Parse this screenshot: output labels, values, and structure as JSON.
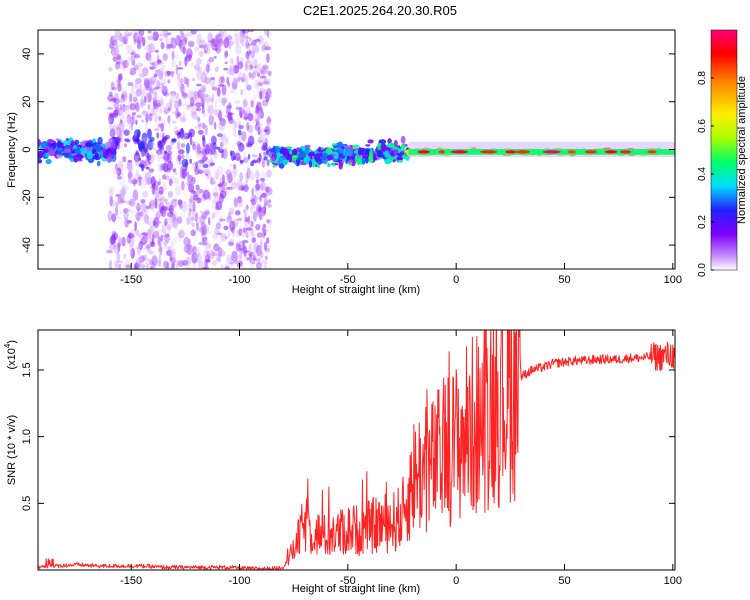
{
  "title": "C2E1.2025.264.20.30.R05",
  "chart_data": [
    {
      "type": "heatmap",
      "name": "spectrogram",
      "xlabel": "Height of straight line (km)",
      "ylabel": "Frequency (Hz)",
      "xlim": [
        -193,
        101
      ],
      "ylim": [
        -50,
        50
      ],
      "xticks": [
        -150,
        -100,
        -50,
        0,
        50,
        100
      ],
      "xtick_labels": [
        "-150",
        "-100",
        "-50",
        "0",
        "50",
        "100"
      ],
      "yticks": [
        -40,
        -20,
        0,
        20,
        40
      ],
      "ytick_labels": [
        "-40",
        "-20",
        "0",
        "20",
        "40"
      ],
      "colorbar": {
        "label": "Normalized spectral amplitude",
        "range": [
          0,
          1
        ],
        "ticks": [
          0.0,
          0.2,
          0.4,
          0.6,
          0.8
        ],
        "tick_labels": [
          "0.0",
          "0.2",
          "0.4",
          "0.6",
          "0.8"
        ],
        "colormap": [
          "#ffffff",
          "#cc99ff",
          "#8000ff",
          "#2020ff",
          "#00ddff",
          "#00ff66",
          "#aaff00",
          "#ffee00",
          "#ff8800",
          "#ff0000",
          "#ff0077"
        ]
      },
      "regions": [
        {
          "x_range": [
            -193,
            -157
          ],
          "freq_center": 0,
          "freq_spread": 7,
          "amplitude": 0.35,
          "description": "strong low-frequency band"
        },
        {
          "x_range": [
            -160,
            -86
          ],
          "freq_center": 0,
          "freq_spread": 50,
          "amplitude": 0.15,
          "description": "broadband noise"
        },
        {
          "x_range": [
            -85,
            -22
          ],
          "freq_center": -2,
          "freq_spread": 6,
          "amplitude": 0.45,
          "description": "signal band"
        },
        {
          "x_range": [
            -22,
            101
          ],
          "freq_center": -1,
          "freq_spread": 1.5,
          "amplitude": 0.9,
          "description": "strong narrow line near 0 Hz"
        }
      ]
    },
    {
      "type": "line",
      "name": "snr",
      "xlabel": "Height of straight line (km)",
      "ylabel": "SNR (10 * v/v)",
      "multiplier_label": "(x10",
      "multiplier_exp": "4",
      "xlim": [
        -193,
        101
      ],
      "ylim": [
        0,
        1.8
      ],
      "xticks": [
        -150,
        -100,
        -50,
        0,
        50,
        100
      ],
      "xtick_labels": [
        "-150",
        "-100",
        "-50",
        "0",
        "50",
        "100"
      ],
      "yticks": [
        0.5,
        1.0,
        1.5
      ],
      "ytick_labels": [
        "0.5",
        "1.0",
        "1.5"
      ],
      "series": [
        {
          "name": "SNR",
          "color": "#ff2222",
          "x": [
            -193,
            -185,
            -175,
            -165,
            -155,
            -145,
            -135,
            -125,
            -115,
            -105,
            -95,
            -85,
            -80,
            -75,
            -70,
            -65,
            -60,
            -55,
            -50,
            -45,
            -40,
            -35,
            -30,
            -25,
            -22,
            -20,
            -15,
            -10,
            -5,
            0,
            5,
            10,
            15,
            20,
            25,
            30,
            35,
            40,
            45,
            50,
            55,
            60,
            65,
            70,
            75,
            80,
            85,
            90,
            95,
            100,
            101
          ],
          "values": [
            0.02,
            0.03,
            0.04,
            0.03,
            0.03,
            0.03,
            0.02,
            0.02,
            0.02,
            0.02,
            0.01,
            0.01,
            0.02,
            0.15,
            0.35,
            0.28,
            0.25,
            0.27,
            0.3,
            0.3,
            0.32,
            0.35,
            0.35,
            0.4,
            0.55,
            0.7,
            0.75,
            0.8,
            0.9,
            0.95,
            1.05,
            1.1,
            1.25,
            1.3,
            1.4,
            1.45,
            1.5,
            1.52,
            1.55,
            1.56,
            1.57,
            1.57,
            1.58,
            1.58,
            1.58,
            1.59,
            1.59,
            1.6,
            1.6,
            1.62,
            1.55
          ]
        }
      ]
    }
  ]
}
